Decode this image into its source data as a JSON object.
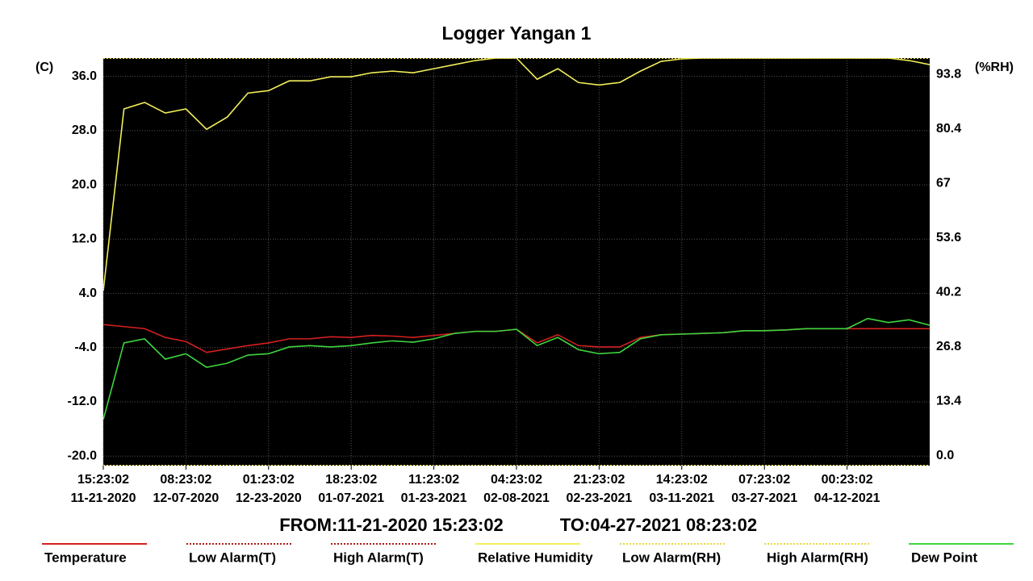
{
  "chart_data": {
    "type": "line",
    "title": "Logger Yangan 1",
    "ylabel": "(C)",
    "y2label": "(%RH)",
    "from_label": "FROM:11-21-2020 15:23:02",
    "to_label": "TO:04-27-2021 08:23:02",
    "categories": [
      "15:23:02",
      null,
      null,
      null,
      "08:23:02",
      null,
      null,
      null,
      "01:23:02",
      null,
      null,
      null,
      "18:23:02",
      null,
      null,
      null,
      "11:23:02",
      null,
      null,
      null,
      "04:23:02",
      null,
      null,
      null,
      "21:23:02",
      null,
      null,
      null,
      "14:23:02",
      null,
      null,
      null,
      "07:23:02",
      null,
      null,
      null,
      "00:23:02",
      null,
      null,
      null,
      null
    ],
    "category_dates": [
      "11-21-2020",
      null,
      null,
      null,
      "12-07-2020",
      null,
      null,
      null,
      "12-23-2020",
      null,
      null,
      null,
      "01-07-2021",
      null,
      null,
      null,
      "01-23-2021",
      null,
      null,
      null,
      "02-08-2021",
      null,
      null,
      null,
      "02-23-2021",
      null,
      null,
      null,
      "03-11-2021",
      null,
      null,
      null,
      "03-27-2021",
      null,
      null,
      null,
      "04-12-2021",
      null,
      null,
      null,
      null
    ],
    "ylim": [
      -21.4,
      38.7
    ],
    "yticks": [
      {
        "value": -20,
        "label": "-20.0"
      },
      {
        "value": -12,
        "label": "-12.0"
      },
      {
        "value": -4,
        "label": "-4.0"
      },
      {
        "value": 4,
        "label": "4.0"
      },
      {
        "value": 12,
        "label": "12.0"
      },
      {
        "value": 20,
        "label": "20.0"
      },
      {
        "value": 28,
        "label": "28.0"
      },
      {
        "value": 36,
        "label": "36.0"
      }
    ],
    "y2lim": [
      -2.4,
      97.8
    ],
    "y2ticks": [
      {
        "value": 0,
        "label": "0.0"
      },
      13.4,
      26.8,
      40.2,
      53.6,
      67,
      80.4,
      93.8
    ],
    "grid": true,
    "series": [
      {
        "name": "Temperature",
        "color": "#d42020",
        "dash": false,
        "values": [
          -0.6,
          -0.9,
          -1.2,
          -2.5,
          -3.1,
          -4.7,
          -4.2,
          -3.7,
          -3.3,
          -2.7,
          -2.7,
          -2.4,
          -2.5,
          -2.2,
          -2.3,
          -2.5,
          -2.2,
          -1.9,
          -1.6,
          -1.6,
          -1.3,
          -3.3,
          -2.1,
          -3.7,
          -3.9,
          -3.9,
          -2.5,
          -2.1,
          -2.0,
          -1.9,
          -1.8,
          -1.5,
          -1.5,
          -1.4,
          -1.2,
          -1.2,
          -1.2,
          -1.2,
          -1.2,
          -1.2,
          -1.2
        ]
      },
      {
        "name": "Low Alarm(T)",
        "color": "#b01818",
        "dash": true,
        "values": [
          -21.4,
          -21.4,
          -21.4,
          -21.4,
          -21.4,
          -21.4,
          -21.4,
          -21.4,
          -21.4,
          -21.4,
          -21.4,
          -21.4,
          -21.4,
          -21.4,
          -21.4,
          -21.4,
          -21.4,
          -21.4,
          -21.4,
          -21.4,
          -21.4,
          -21.4,
          -21.4,
          -21.4,
          -21.4,
          -21.4,
          -21.4,
          -21.4,
          -21.4,
          -21.4,
          -21.4,
          -21.4,
          -21.4,
          -21.4,
          -21.4,
          -21.4,
          -21.4,
          -21.4,
          -21.4,
          -21.4,
          -21.4
        ]
      },
      {
        "name": "High Alarm(T)",
        "color": "#b01818",
        "dash": true,
        "values": [
          38.7,
          38.7,
          38.7,
          38.7,
          38.7,
          38.7,
          38.7,
          38.7,
          38.7,
          38.7,
          38.7,
          38.7,
          38.7,
          38.7,
          38.7,
          38.7,
          38.7,
          38.7,
          38.7,
          38.7,
          38.7,
          38.7,
          38.7,
          38.7,
          38.7,
          38.7,
          38.7,
          38.7,
          38.7,
          38.7,
          38.7,
          38.7,
          38.7,
          38.7,
          38.7,
          38.7,
          38.7,
          38.7,
          38.7,
          38.7,
          38.7
        ]
      },
      {
        "name": "Relative Humidity",
        "color": "#f2ee5a",
        "dash": false,
        "axis": "y2",
        "values": [
          40.6,
          85.3,
          86.9,
          84.3,
          85.3,
          80.3,
          83.3,
          89.2,
          89.8,
          92.2,
          92.2,
          93.2,
          93.2,
          94.2,
          94.6,
          94.2,
          95.2,
          96.2,
          97.2,
          97.8,
          97.8,
          92.6,
          95.2,
          91.8,
          91.2,
          91.8,
          94.6,
          97.0,
          97.6,
          97.8,
          97.8,
          97.8,
          97.8,
          97.8,
          97.8,
          97.8,
          97.8,
          97.8,
          97.8,
          97.2,
          96.2
        ]
      },
      {
        "name": "Low Alarm(RH)",
        "color": "#e8d840",
        "dash": true,
        "axis": "y2",
        "values": [
          -2.4,
          -2.4,
          -2.4,
          -2.4,
          -2.4,
          -2.4,
          -2.4,
          -2.4,
          -2.4,
          -2.4,
          -2.4,
          -2.4,
          -2.4,
          -2.4,
          -2.4,
          -2.4,
          -2.4,
          -2.4,
          -2.4,
          -2.4,
          -2.4,
          -2.4,
          -2.4,
          -2.4,
          -2.4,
          -2.4,
          -2.4,
          -2.4,
          -2.4,
          -2.4,
          -2.4,
          -2.4,
          -2.4,
          -2.4,
          -2.4,
          -2.4,
          -2.4,
          -2.4,
          -2.4,
          -2.4,
          -2.4
        ]
      },
      {
        "name": "High Alarm(RH)",
        "color": "#e8d840",
        "dash": true,
        "axis": "y2",
        "values": [
          97.8,
          97.8,
          97.8,
          97.8,
          97.8,
          97.8,
          97.8,
          97.8,
          97.8,
          97.8,
          97.8,
          97.8,
          97.8,
          97.8,
          97.8,
          97.8,
          97.8,
          97.8,
          97.8,
          97.8,
          97.8,
          97.8,
          97.8,
          97.8,
          97.8,
          97.8,
          97.8,
          97.8,
          97.8,
          97.8,
          97.8,
          97.8,
          97.8,
          97.8,
          97.8,
          97.8,
          97.8,
          97.8,
          97.8,
          97.8,
          97.8
        ]
      },
      {
        "name": "Dew Point",
        "color": "#3ed63e",
        "dash": false,
        "values": [
          -14.6,
          -3.3,
          -2.7,
          -5.7,
          -4.9,
          -6.9,
          -6.3,
          -5.1,
          -4.9,
          -3.9,
          -3.7,
          -3.9,
          -3.7,
          -3.3,
          -3.0,
          -3.2,
          -2.7,
          -1.9,
          -1.6,
          -1.6,
          -1.3,
          -3.7,
          -2.5,
          -4.3,
          -4.9,
          -4.7,
          -2.7,
          -2.1,
          -2.0,
          -1.9,
          -1.8,
          -1.5,
          -1.5,
          -1.4,
          -1.2,
          -1.2,
          -1.2,
          0.3,
          -0.3,
          0.1,
          -0.7
        ]
      }
    ]
  }
}
